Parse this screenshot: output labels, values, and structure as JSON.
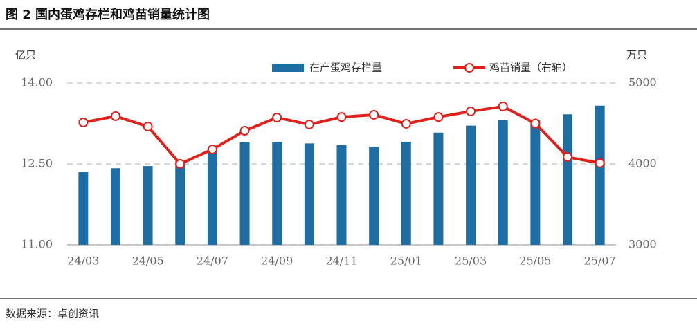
{
  "chart_data": {
    "type": "bar-line",
    "title": "图 2 国内蛋鸡存栏和鸡苗销量统计图",
    "source": "数据来源：卓创资讯",
    "y_unit": "亿只",
    "y2_unit": "万只",
    "categories": [
      "24/03",
      null,
      "24/05",
      null,
      "24/07",
      null,
      "24/09",
      null,
      "24/11",
      null,
      "25/01",
      null,
      "25/03",
      null,
      "25/05",
      null,
      "25/07"
    ],
    "series": [
      {
        "name": "在产蛋鸡存栏量",
        "type": "bar",
        "color": "#1f6ea3",
        "values": [
          12.35,
          12.42,
          12.46,
          12.56,
          12.78,
          12.9,
          12.91,
          12.88,
          12.85,
          12.82,
          12.91,
          13.08,
          13.21,
          13.31,
          13.32,
          13.42,
          13.58
        ]
      },
      {
        "name": "鸡苗销量（右轴）",
        "type": "line",
        "axis": "y2",
        "color": "#e0201b",
        "values": [
          4513,
          4590,
          4462,
          4000,
          4180,
          4410,
          4573,
          4487,
          4580,
          4607,
          4496,
          4580,
          4650,
          4710,
          4500,
          4085,
          4010
        ]
      }
    ],
    "ylim": [
      11,
      14
    ],
    "yticks": [
      {
        "value": 11,
        "label": "11.00"
      },
      {
        "value": 12.5,
        "label": "12.50"
      },
      {
        "value": 14,
        "label": "14.00"
      }
    ],
    "y2lim": [
      3000,
      5000
    ],
    "y2ticks": [
      3000,
      4000,
      5000
    ],
    "grid": true
  }
}
